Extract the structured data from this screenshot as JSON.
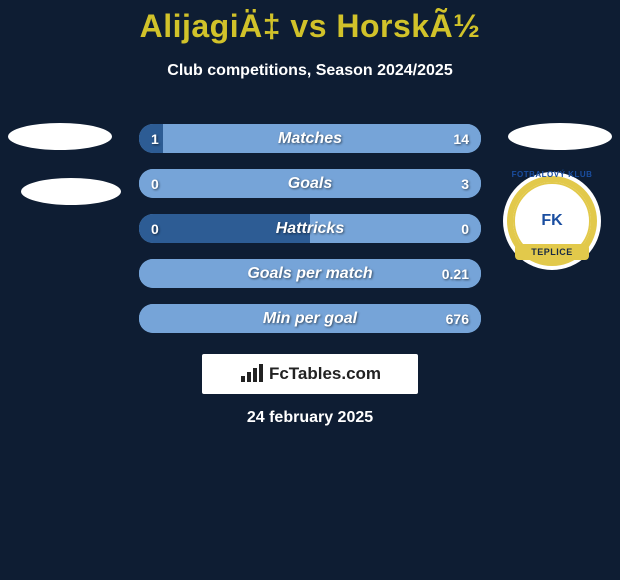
{
  "colors": {
    "background": "#0e1d33",
    "title": "#d1c22a",
    "subtitle": "#ffffff",
    "bar_left": "#2d5c94",
    "bar_right": "#76a4d8",
    "bar_text": "#ffffff",
    "ellipse": "#ffffff",
    "badge_bg": "#ffffff",
    "badge_ring": "#e2c94b",
    "badge_ribbon": "#e2c94b",
    "brand_icon": "#222222",
    "footer": "#ffffff"
  },
  "typography": {
    "title_fontsize": 32,
    "subtitle_fontsize": 16,
    "bar_label_fontsize": 16,
    "bar_value_fontsize": 14,
    "footer_fontsize": 16
  },
  "title": "AlijagiÄ‡ vs HorskÃ½",
  "subtitle": "Club competitions, Season 2024/2025",
  "bars": {
    "height": 29,
    "gap": 16,
    "radius": 14,
    "rows": [
      {
        "label": "Matches",
        "left": "1",
        "right": "14",
        "left_ratio": 0.07
      },
      {
        "label": "Goals",
        "left": "0",
        "right": "3",
        "left_ratio": 0.0
      },
      {
        "label": "Hattricks",
        "left": "0",
        "right": "0",
        "left_ratio": 0.5
      },
      {
        "label": "Goals per match",
        "left": "",
        "right": "0.21",
        "left_ratio": 0.0
      },
      {
        "label": "Min per goal",
        "left": "",
        "right": "676",
        "left_ratio": 0.0
      }
    ]
  },
  "club_badge": {
    "initials": "FK",
    "arc": "FOTBALOVÝ KLUB",
    "ribbon": "TEPLICE"
  },
  "brand": "FcTables.com",
  "footer_date": "24 february 2025"
}
